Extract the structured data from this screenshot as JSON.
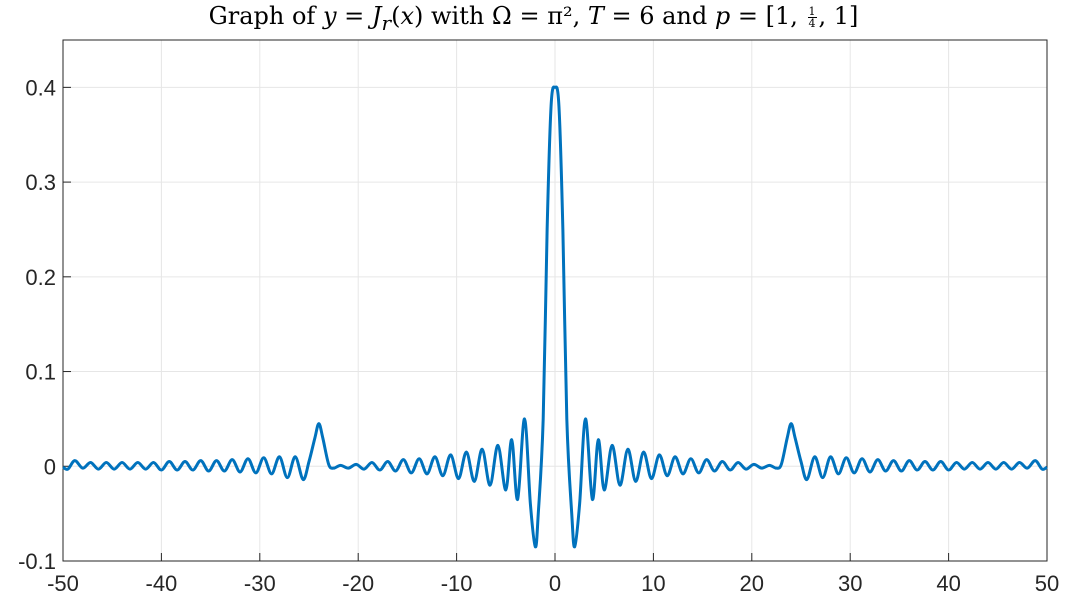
{
  "chart_data": {
    "type": "line",
    "title": "Graph of y = J_r(x) with Ω = π², T = 6 and p = [1, 1/4, 1]",
    "xlabel": "",
    "ylabel": "",
    "xlim": [
      -50,
      50
    ],
    "ylim": [
      -0.1,
      0.45
    ],
    "xticks": [
      -50,
      -40,
      -30,
      -20,
      -10,
      0,
      10,
      20,
      30,
      40,
      50
    ],
    "yticks": [
      -0.1,
      0,
      0.1,
      0.2,
      0.3,
      0.4
    ],
    "grid": true,
    "line_color": "#0072BD",
    "series": [
      {
        "x": [
          -50,
          -49.5,
          -48.8,
          -48,
          -47.2,
          -46.4,
          -45.6,
          -44.8,
          -44,
          -43.2,
          -42.4,
          -41.6,
          -40.8,
          -40,
          -39.2,
          -38.4,
          -37.6,
          -36.8,
          -36,
          -35.2,
          -34.4,
          -33.6,
          -32.8,
          -32,
          -31.2,
          -30.4,
          -29.6,
          -28.8,
          -28,
          -27.2,
          -26.4,
          -25.6,
          -25,
          -24.4,
          -24,
          -23.6,
          -23,
          -22.5,
          -21.8,
          -21,
          -20.2,
          -19.4,
          -18.6,
          -17.8,
          -17,
          -16.2,
          -15.4,
          -14.6,
          -13.8,
          -13,
          -12.2,
          -11.4,
          -10.6,
          -9.8,
          -9,
          -8.2,
          -7.4,
          -6.6,
          -5.8,
          -5,
          -4.4,
          -3.8,
          -3.1,
          -2.5,
          -2,
          -1.7,
          -1.2,
          -0.8,
          -0.4,
          0,
          0.4,
          0.8,
          1.2,
          1.7,
          2,
          2.5,
          3.1,
          3.8,
          4.4,
          5,
          5.8,
          6.6,
          7.4,
          8.2,
          9,
          9.8,
          10.6,
          11.4,
          12.2,
          13,
          13.8,
          14.6,
          15.4,
          16.2,
          17,
          17.8,
          18.6,
          19.4,
          20.2,
          21,
          21.8,
          22.5,
          23,
          23.6,
          24,
          24.4,
          25,
          25.6,
          26.4,
          27.2,
          28,
          28.8,
          29.6,
          30.4,
          31.2,
          32,
          32.8,
          33.6,
          34.4,
          35.2,
          36,
          36.8,
          37.6,
          38.4,
          39.2,
          40,
          40.8,
          41.6,
          42.4,
          43.2,
          44,
          44.8,
          45.6,
          46.4,
          47.2,
          48,
          48.8,
          49.5,
          50
        ],
        "y": [
          -0.001,
          -0.003,
          0.006,
          -0.002,
          0.004,
          -0.003,
          0.004,
          -0.003,
          0.004,
          -0.003,
          0.004,
          -0.003,
          0.004,
          -0.004,
          0.005,
          -0.004,
          0.005,
          -0.004,
          0.006,
          -0.005,
          0.006,
          -0.005,
          0.007,
          -0.006,
          0.008,
          -0.007,
          0.009,
          -0.008,
          0.01,
          -0.012,
          0.01,
          -0.014,
          0.005,
          0.03,
          0.045,
          0.03,
          0.002,
          -0.002,
          0.001,
          -0.002,
          0.002,
          -0.003,
          0.004,
          -0.004,
          0.005,
          -0.005,
          0.007,
          -0.007,
          0.008,
          -0.008,
          0.01,
          -0.01,
          0.012,
          -0.013,
          0.015,
          -0.016,
          0.018,
          -0.02,
          0.022,
          -0.025,
          0.028,
          -0.035,
          0.05,
          -0.04,
          -0.085,
          -0.05,
          0.05,
          0.25,
          0.38,
          0.4,
          0.38,
          0.25,
          0.05,
          -0.05,
          -0.085,
          -0.04,
          0.05,
          -0.035,
          0.028,
          -0.025,
          0.022,
          -0.02,
          0.018,
          -0.016,
          0.015,
          -0.013,
          0.012,
          -0.01,
          0.01,
          -0.008,
          0.008,
          -0.007,
          0.007,
          -0.005,
          0.005,
          -0.004,
          0.004,
          -0.003,
          0.002,
          -0.002,
          0.001,
          -0.002,
          0.002,
          0.03,
          0.045,
          0.03,
          0.005,
          -0.014,
          0.01,
          -0.012,
          0.01,
          -0.008,
          0.009,
          -0.007,
          0.008,
          -0.006,
          0.007,
          -0.005,
          0.006,
          -0.005,
          0.006,
          -0.004,
          0.005,
          -0.004,
          0.005,
          -0.004,
          0.004,
          -0.003,
          0.004,
          -0.003,
          0.004,
          -0.003,
          0.004,
          -0.003,
          0.004,
          -0.002,
          0.006,
          -0.003,
          -0.001
        ]
      }
    ]
  }
}
